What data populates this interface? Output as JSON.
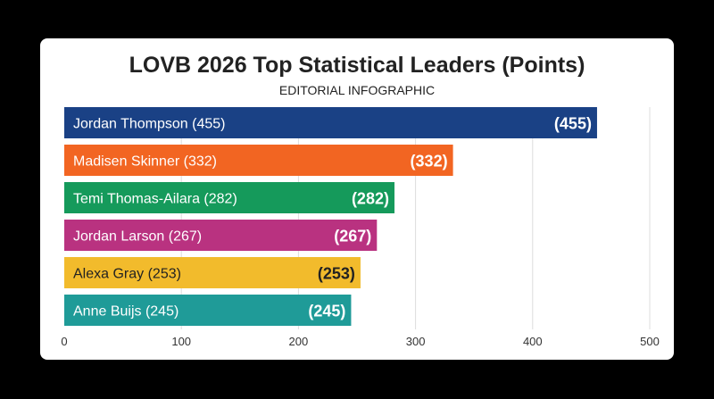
{
  "chart_data": {
    "type": "bar",
    "orientation": "horizontal",
    "title": "LOVB 2026 Top Statistical Leaders (Points)",
    "subtitle": "EDITORIAL INFOGRAPHIC",
    "categories": [
      "Jordan Thompson (455)",
      "Madisen Skinner (332)",
      "Temi Thomas-Ailara (282)",
      "Jordan Larson (267)",
      "Alexa Gray (253)",
      "Anne Buijs (245)"
    ],
    "values": [
      455,
      332,
      282,
      267,
      253,
      245
    ],
    "value_labels": [
      "(455)",
      "(332)",
      "(282)",
      "(267)",
      "(253)",
      "(245)"
    ],
    "colors": [
      "#1a4185",
      "#f26522",
      "#159a5b",
      "#b93280",
      "#f2bb2c",
      "#1f9b98"
    ],
    "label_colors": [
      "#ffffff",
      "#ffffff",
      "#ffffff",
      "#ffffff",
      "#222222",
      "#ffffff"
    ],
    "xlim": [
      0,
      500
    ],
    "xticks": [
      0,
      100,
      200,
      300,
      400,
      500
    ],
    "grid": true,
    "legend": "none"
  }
}
